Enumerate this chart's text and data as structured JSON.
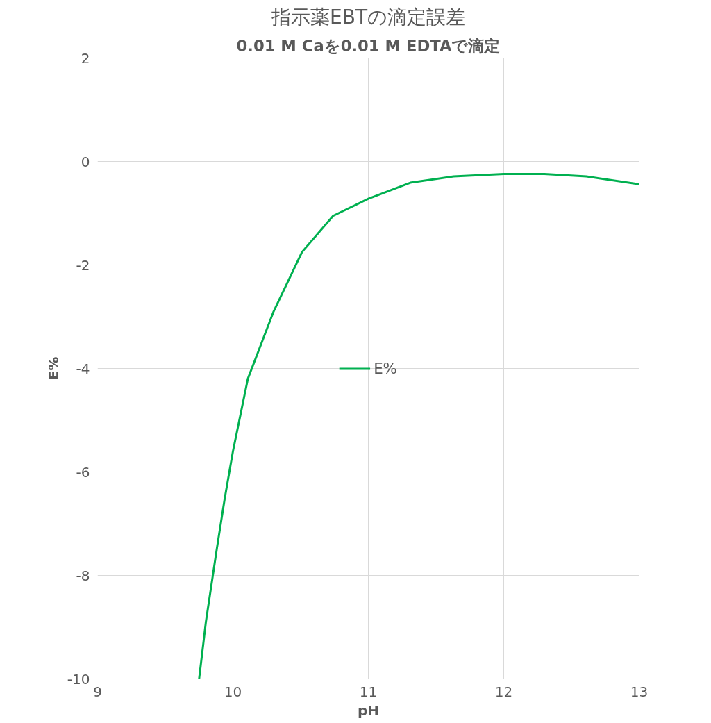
{
  "chart_data": {
    "type": "line",
    "title": "指示薬EBTの滴定誤差",
    "subtitle": "0.01 M Caを0.01 M EDTAで滴定",
    "xlabel": "pH",
    "ylabel": "E%",
    "x": [
      9.75,
      9.8,
      9.88,
      9.94,
      10.0,
      10.11,
      10.3,
      10.51,
      10.74,
      11.0,
      11.31,
      11.63,
      12.0,
      12.3,
      12.61,
      13.0
    ],
    "series": [
      {
        "name": "E%",
        "color": "#00b050",
        "values": [
          -10,
          -8.9,
          -7.5,
          -6.5,
          -5.6,
          -4.2,
          -2.9,
          -1.75,
          -1.05,
          -0.72,
          -0.41,
          -0.29,
          -0.24,
          -0.24,
          -0.29,
          -0.44
        ]
      }
    ],
    "xlim": [
      9,
      13
    ],
    "xticks": [
      9,
      10,
      11,
      12,
      13
    ],
    "ylim": [
      -10,
      2
    ],
    "yticks": [
      -10,
      -8,
      -6,
      -4,
      -2,
      0,
      2
    ],
    "grid": true,
    "legend": "center",
    "marker": "none",
    "line_style": "solid"
  }
}
